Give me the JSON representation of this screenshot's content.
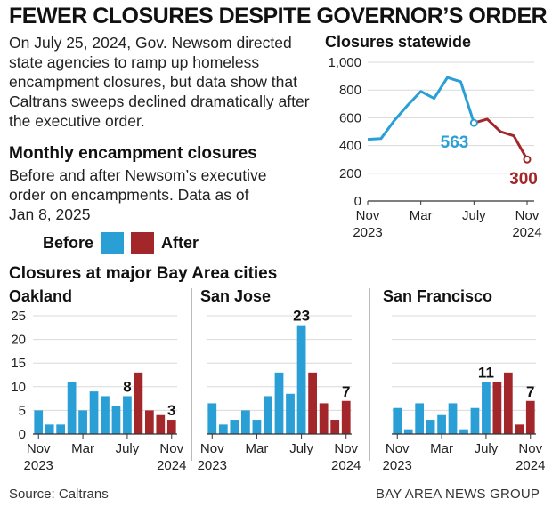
{
  "headline": "FEWER CLOSURES DESPITE GOVERNOR’S ORDER",
  "intro": "On July 25, 2024, Gov. Newsom directed state agencies to ramp up homeless encampment closures, but data show that Caltrans sweeps declined dramatically after the executive order.",
  "monthly": {
    "title": "Monthly encampment closures",
    "description": "Before and after Newsom’s executive order on encampments. Data as of Jan 8, 2025"
  },
  "legend": {
    "before": "Before",
    "after": "After"
  },
  "colors": {
    "before": "#2a9fd6",
    "after": "#a3262a",
    "axis": "#333333",
    "grid": "#d9d9d9"
  },
  "bay_area_title": "Closures at major Bay Area cities",
  "source": "Source: Caltrans",
  "credit": "BAY AREA NEWS GROUP",
  "chart_data": [
    {
      "type": "line",
      "title": "Closures statewide",
      "x": [
        "Nov 2023",
        "Dec 2023",
        "Jan 2024",
        "Feb 2024",
        "Mar 2024",
        "Apr 2024",
        "May 2024",
        "Jun 2024",
        "Jul 2024",
        "Aug 2024",
        "Sep 2024",
        "Oct 2024",
        "Nov 2024"
      ],
      "series": [
        {
          "name": "Before",
          "values": [
            445,
            450,
            580,
            690,
            790,
            740,
            890,
            860,
            563,
            null,
            null,
            null,
            null
          ]
        },
        {
          "name": "After",
          "values": [
            null,
            null,
            null,
            null,
            null,
            null,
            null,
            null,
            563,
            590,
            500,
            470,
            300
          ]
        }
      ],
      "ylim": [
        0,
        1000
      ],
      "yticks": [
        "0",
        "200",
        "400",
        "600",
        "800",
        "1,000"
      ],
      "xtick_labels": [
        [
          "Nov",
          "2023"
        ],
        [
          "Mar",
          ""
        ],
        [
          "July",
          ""
        ],
        [
          "Nov",
          "2024"
        ]
      ],
      "annotations": [
        "563",
        "300"
      ],
      "grid": true
    },
    {
      "type": "bar",
      "title": "Oakland",
      "categories": [
        "Nov 2023",
        "Dec 2023",
        "Jan 2024",
        "Feb 2024",
        "Mar 2024",
        "Apr 2024",
        "May 2024",
        "Jun 2024",
        "Jul 2024",
        "Aug 2024",
        "Sep 2024",
        "Oct 2024",
        "Nov 2024"
      ],
      "values": [
        5,
        2,
        2,
        11,
        5,
        9,
        8,
        6,
        8,
        13,
        5,
        4,
        3
      ],
      "period": [
        "before",
        "before",
        "before",
        "before",
        "before",
        "before",
        "before",
        "before",
        "before",
        "after",
        "after",
        "after",
        "after"
      ],
      "ylim": [
        0,
        25
      ],
      "yticks": [
        "0",
        "5",
        "10",
        "15",
        "20",
        "25"
      ],
      "xtick_labels": [
        [
          "Nov",
          "2023"
        ],
        [
          "Mar",
          ""
        ],
        [
          "July",
          ""
        ],
        [
          "Nov",
          "2024"
        ]
      ],
      "annotations": [
        "8",
        "3"
      ]
    },
    {
      "type": "bar",
      "title": "San Jose",
      "categories": [
        "Nov 2023",
        "Dec 2023",
        "Jan 2024",
        "Feb 2024",
        "Mar 2024",
        "Apr 2024",
        "May 2024",
        "Jun 2024",
        "Jul 2024",
        "Aug 2024",
        "Sep 2024",
        "Oct 2024",
        "Nov 2024"
      ],
      "values": [
        6.5,
        2,
        3,
        5,
        3,
        8,
        13,
        8.5,
        23,
        13,
        6.5,
        3,
        7
      ],
      "period": [
        "before",
        "before",
        "before",
        "before",
        "before",
        "before",
        "before",
        "before",
        "before",
        "after",
        "after",
        "after",
        "after"
      ],
      "ylim": [
        0,
        25
      ],
      "xtick_labels": [
        [
          "Nov",
          "2023"
        ],
        [
          "Mar",
          ""
        ],
        [
          "July",
          ""
        ],
        [
          "Nov",
          "2024"
        ]
      ],
      "annotations": [
        "23",
        "7"
      ]
    },
    {
      "type": "bar",
      "title": "San Francisco",
      "categories": [
        "Nov 2023",
        "Dec 2023",
        "Jan 2024",
        "Feb 2024",
        "Mar 2024",
        "Apr 2024",
        "May 2024",
        "Jun 2024",
        "Jul 2024",
        "Aug 2024",
        "Sep 2024",
        "Oct 2024",
        "Nov 2024"
      ],
      "values": [
        5.5,
        1,
        6.5,
        3,
        4,
        6.5,
        1,
        5.5,
        11,
        11,
        13,
        2,
        7
      ],
      "period": [
        "before",
        "before",
        "before",
        "before",
        "before",
        "before",
        "before",
        "before",
        "before",
        "after",
        "after",
        "after",
        "after"
      ],
      "ylim": [
        0,
        25
      ],
      "xtick_labels": [
        [
          "Nov",
          "2023"
        ],
        [
          "Mar",
          ""
        ],
        [
          "July",
          ""
        ],
        [
          "Nov",
          "2024"
        ]
      ],
      "annotations": [
        "11",
        "7"
      ]
    }
  ]
}
